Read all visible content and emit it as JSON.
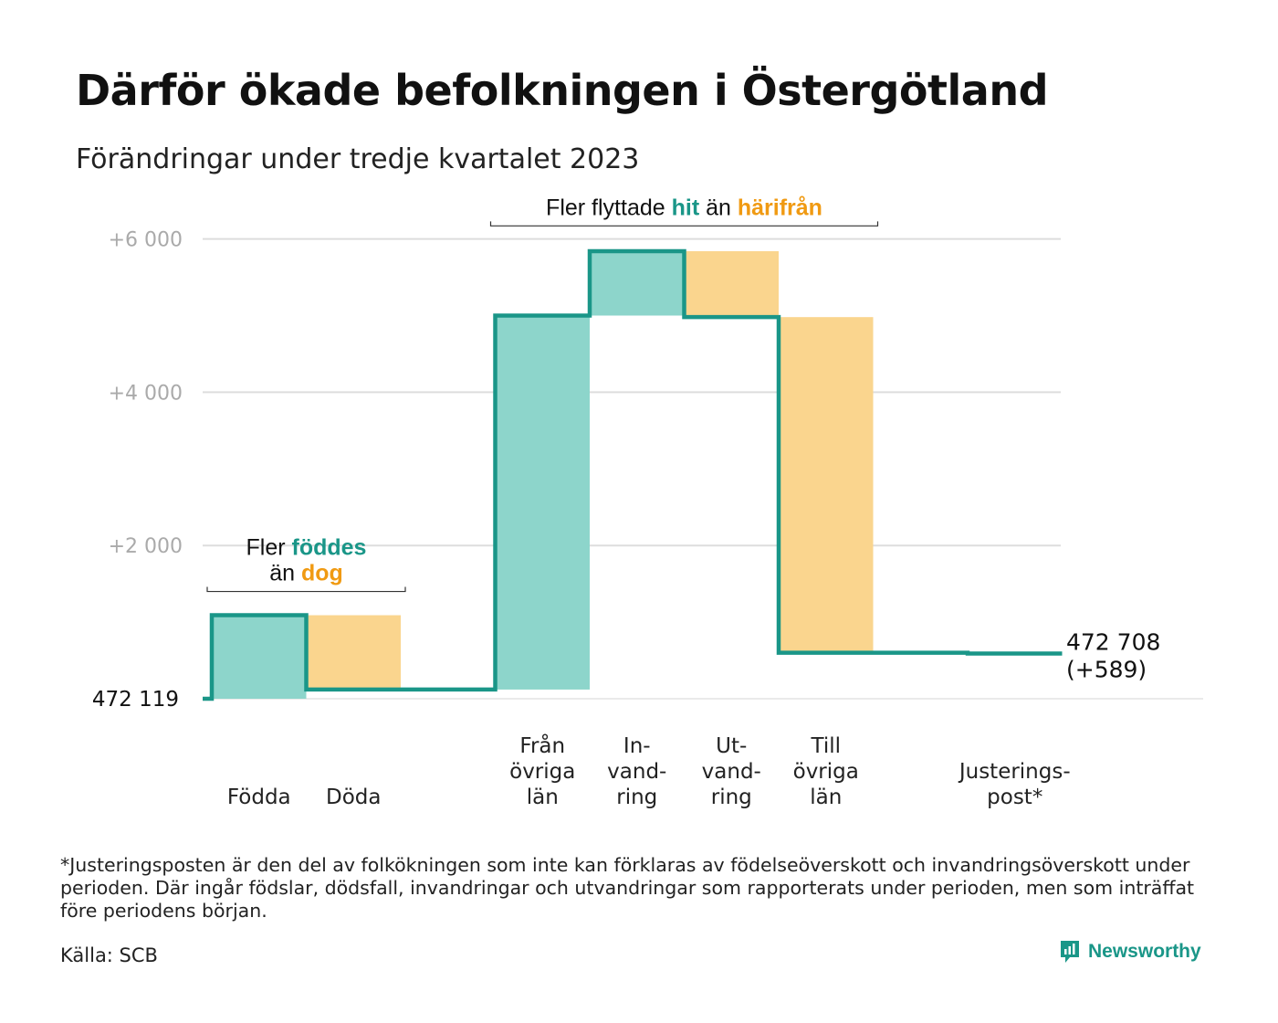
{
  "header": {
    "title": "Därför ökade befolkningen i Östergötland",
    "subtitle": "Förändringar under tredje kvartalet 2023"
  },
  "colors": {
    "teal_line": "#1a9688",
    "teal_fill": "#8dd5cb",
    "orange_fill": "#fad58e",
    "teal_text": "#1a9688",
    "orange_text": "#f09a12",
    "grid": "#dddddd",
    "tick": "#aaaaaa"
  },
  "chart_data": {
    "type": "waterfall",
    "title": "Därför ökade befolkningen i Östergötland",
    "subtitle": "Förändringar under tredje kvartalet 2023",
    "y_ticks": [
      {
        "value": 2000,
        "label": "+2   000"
      },
      {
        "value": 4000,
        "label": "+4   000"
      },
      {
        "value": 6000,
        "label": "+6   000"
      }
    ],
    "baseline_value": 0,
    "baseline_label": "472   119",
    "ylim": [
      0,
      6200
    ],
    "categories": [
      {
        "lines": [
          "Födda"
        ],
        "delta": 1090,
        "kind": "increase"
      },
      {
        "lines": [
          "Döda"
        ],
        "delta": -970,
        "kind": "decrease"
      },
      {
        "lines": [],
        "delta": 0,
        "kind": "gap"
      },
      {
        "lines": [
          "Från",
          "övriga",
          "län"
        ],
        "delta": 4880,
        "kind": "increase"
      },
      {
        "lines": [
          "In-",
          "vand-",
          "ring"
        ],
        "delta": 840,
        "kind": "increase"
      },
      {
        "lines": [
          "Ut-",
          "vand-",
          "ring"
        ],
        "delta": -860,
        "kind": "decrease"
      },
      {
        "lines": [
          "Till",
          "övriga",
          "län"
        ],
        "delta": -4380,
        "kind": "decrease"
      },
      {
        "lines": [],
        "delta": 0,
        "kind": "gap"
      },
      {
        "lines": [
          "Justerings-",
          "post*"
        ],
        "delta": -10,
        "kind": "adjustment"
      }
    ],
    "end_label": [
      "472 708",
      "(+589)"
    ],
    "annotations": [
      {
        "from_index": 0,
        "to_index": 1,
        "at_value": 1400,
        "lines": [
          [
            {
              "text": "Fler ",
              "style": "plain"
            },
            {
              "text": "föddes",
              "style": "teal"
            }
          ],
          [
            {
              "text": "än ",
              "style": "plain"
            },
            {
              "text": "dog",
              "style": "orange"
            }
          ]
        ]
      },
      {
        "from_index": 3,
        "to_index": 6,
        "at_value": 6170,
        "lines": [
          [
            {
              "text": "Fler flyttade ",
              "style": "plain"
            },
            {
              "text": "hit",
              "style": "teal"
            },
            {
              "text": "  än ",
              "style": "plain"
            },
            {
              "text": "härifrån",
              "style": "orange"
            }
          ]
        ]
      }
    ]
  },
  "footnote": "*Justeringsposten är den del av folkökningen som inte kan förklaras av födelseöverskott och invandringsöverskott under perioden. Där ingår födslar, dödsfall, invandringar och utvandringar som rapporterats under perioden, men som inträffat före periodens början.",
  "source": "Källa: SCB",
  "brand": {
    "name": "Newsworthy",
    "icon": "newsworthy-logo-icon"
  }
}
